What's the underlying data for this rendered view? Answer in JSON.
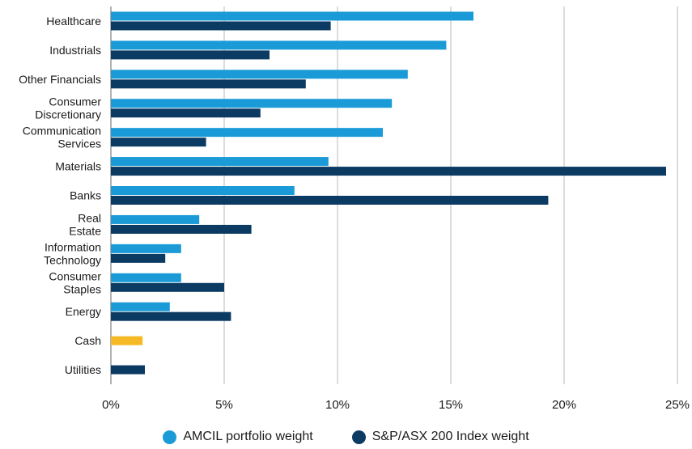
{
  "chart_data": {
    "type": "bar",
    "orientation": "horizontal",
    "categories": [
      [
        "Healthcare"
      ],
      [
        "Industrials"
      ],
      [
        "Other Financials"
      ],
      [
        "Consumer",
        "Discretionary"
      ],
      [
        "Communication",
        "Services"
      ],
      [
        "Materials"
      ],
      [
        "Banks"
      ],
      [
        "Real",
        "Estate"
      ],
      [
        "Information",
        "Technology"
      ],
      [
        "Consumer",
        "Staples"
      ],
      [
        "Energy"
      ],
      [
        "Cash"
      ],
      [
        "Utilities"
      ]
    ],
    "series": [
      {
        "name": "AMCIL portfolio weight",
        "color": "#1a9bd7",
        "values": [
          16.0,
          14.8,
          13.1,
          12.4,
          12.0,
          9.6,
          8.1,
          3.9,
          3.1,
          3.1,
          2.6,
          1.4,
          null
        ]
      },
      {
        "name": "S&P/ASX 200 Index weight",
        "color": "#0b3a63",
        "values": [
          9.7,
          7.0,
          8.6,
          6.6,
          4.2,
          24.5,
          19.3,
          6.2,
          2.4,
          5.0,
          5.3,
          null,
          1.5
        ]
      }
    ],
    "highlight": {
      "category": "Cash",
      "color": "#f5b925"
    },
    "xticks": [
      "0%",
      "5%",
      "10%",
      "15%",
      "20%",
      "25%"
    ],
    "xlim": [
      0,
      25
    ],
    "grid": "vertical"
  }
}
